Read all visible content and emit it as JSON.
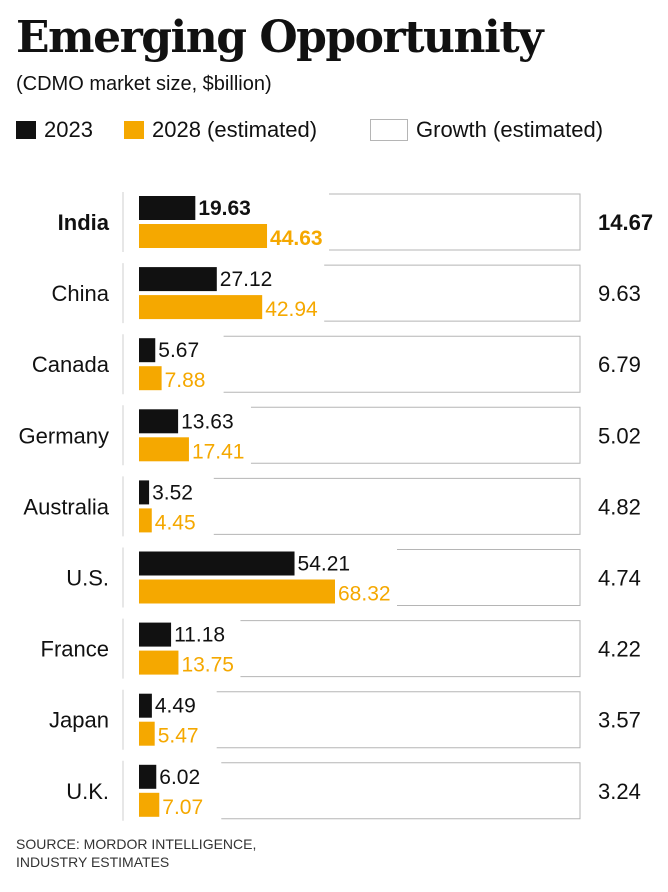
{
  "title": "Emerging Opportunity",
  "subtitle": "(CDMO market size, $billion)",
  "legend": {
    "s2023": "2023",
    "s2028": "2028 (estimated)",
    "growth": "Growth (estimated)"
  },
  "colors": {
    "s2023": "#111111",
    "s2028": "#f5a800",
    "growth_box": "#b5b5b5"
  },
  "source": {
    "line1": "SOURCE: MORDOR INTELLIGENCE,",
    "line2": "INDUSTRY ESTIMATES"
  },
  "chart_data": {
    "type": "bar",
    "orientation": "horizontal",
    "categories": [
      "India",
      "China",
      "Canada",
      "Germany",
      "Australia",
      "U.S.",
      "France",
      "Japan",
      "U.K."
    ],
    "highlight": "India",
    "series": [
      {
        "name": "2023",
        "values": [
          19.63,
          27.12,
          5.67,
          13.63,
          3.52,
          54.21,
          11.18,
          4.49,
          6.02
        ],
        "labels": [
          "19.63",
          "27.12",
          "5.67",
          "13.63",
          "3.52",
          "54.21",
          "11.18",
          "4.49",
          "6.02"
        ]
      },
      {
        "name": "2028 (estimated)",
        "values": [
          44.63,
          42.94,
          7.88,
          17.41,
          4.45,
          68.32,
          13.75,
          5.47,
          7.07
        ],
        "labels": [
          "44.63",
          "42.94",
          "7.88",
          "17.41",
          "4.45",
          "68.32",
          "13.75",
          "5.47",
          "7.07"
        ]
      }
    ],
    "growth": {
      "name": "Growth (estimated)",
      "values": [
        14.67,
        9.63,
        6.79,
        5.02,
        4.82,
        4.74,
        4.22,
        3.57,
        3.24
      ],
      "labels": [
        "14.67",
        "9.63",
        "6.79",
        "5.02",
        "4.82",
        "4.74",
        "4.22",
        "3.57",
        "3.24"
      ]
    },
    "xlim": [
      0,
      68.32
    ]
  }
}
